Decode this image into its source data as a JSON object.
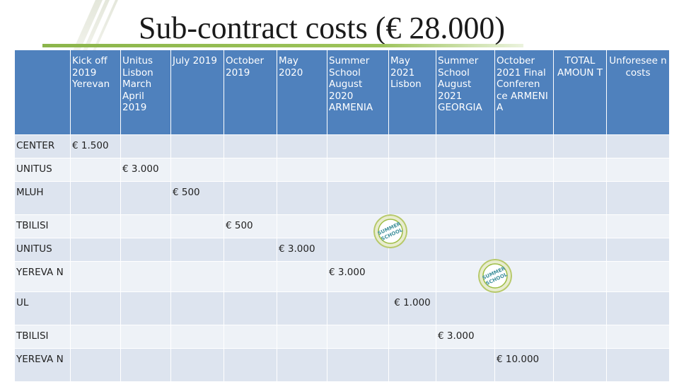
{
  "title": "Sub-contract costs (€ 28.000)",
  "colors": {
    "header_bg": "#4f81bd",
    "row_odd": "#dde4ef",
    "row_even": "#eef2f7",
    "rule": "#8bb54b"
  },
  "table": {
    "headers": [
      "",
      "Kick off 2019 Yerevan",
      "Unitus Lisbon March April 2019",
      "July 2019",
      "October 2019",
      "May 2020",
      "Summer School August 2020 ARMENIA",
      "May 2021 Lisbon",
      "Summer School August 2021 GEORGIA",
      "October 2021 Final Conferen ce ARMENI A",
      "TOTAL AMOUN T",
      "Unforesee n costs"
    ],
    "rows": [
      {
        "label": "CENTER",
        "col": 1,
        "value": "€ 1.500"
      },
      {
        "label": "UNITUS",
        "col": 2,
        "value": "€ 3.000"
      },
      {
        "label": "MLUH",
        "col": 3,
        "value": "€ 500"
      },
      {
        "label": "TBILISI",
        "col": 4,
        "value": "€ 500"
      },
      {
        "label": "UNITUS",
        "col": 5,
        "value": "€ 3.000"
      },
      {
        "label": "YEREVA N",
        "col": 6,
        "value": "€ 3.000"
      },
      {
        "label": "UL",
        "col": 7,
        "value": "€ 1.000"
      },
      {
        "label": "TBILISI",
        "col": 8,
        "value": "€ 3.000"
      },
      {
        "label": "YEREVA N",
        "col": 9,
        "value": "€ 10.000"
      }
    ]
  },
  "badges": {
    "summer_school_text": "SUMMER SCHOOL"
  }
}
